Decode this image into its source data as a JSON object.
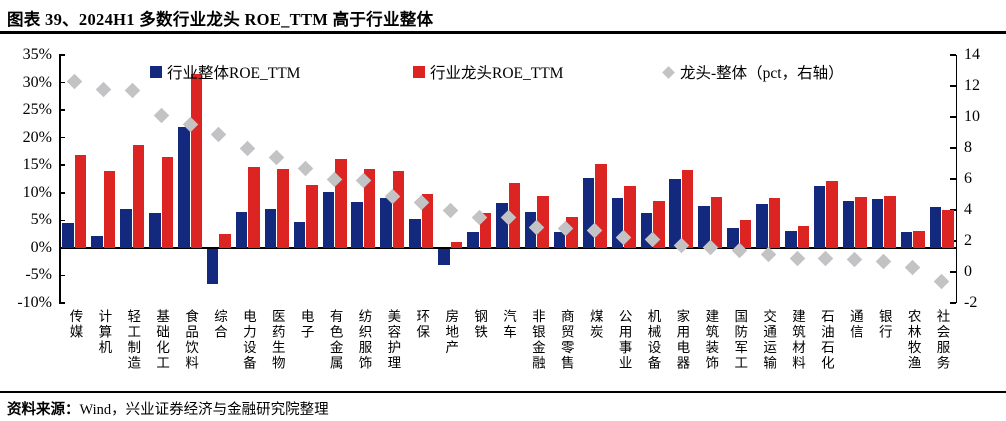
{
  "title": "图表 39、2024H1 多数行业龙头 ROE_TTM 高于行业整体",
  "source_note": {
    "label": "资料来源：",
    "text": "Wind，兴业证券经济与金融研究院整理"
  },
  "colors": {
    "overall_bar": "#12297e",
    "leader_bar": "#dc2423",
    "diff_marker": "#c3c3c6",
    "axis": "#000000"
  },
  "legend": [
    {
      "label": "行业整体ROE_TTM",
      "marker": "square",
      "color": "#12297e"
    },
    {
      "label": "行业龙头ROE_TTM",
      "marker": "square",
      "color": "#dc2423"
    },
    {
      "label": "龙头-整体（pct，右轴）",
      "marker": "diamond",
      "color": "#c3c3c6"
    }
  ],
  "chart_data": {
    "type": "bar",
    "subtype": "grouped bars with diamond scatter on secondary axis",
    "categories": [
      "传媒",
      "计算机",
      "轻工制造",
      "基础化工",
      "食品饮料",
      "综合",
      "电力设备",
      "医药生物",
      "电子",
      "有色金属",
      "纺织服饰",
      "美容护理",
      "环保",
      "房地产",
      "钢铁",
      "汽车",
      "非银金融",
      "商贸零售",
      "煤炭",
      "公用事业",
      "机械设备",
      "家用电器",
      "建筑装饰",
      "国防军工",
      "交通运输",
      "建筑材料",
      "石油石化",
      "通信",
      "银行",
      "农林牧渔",
      "社会服务"
    ],
    "series": [
      {
        "name": "行业整体ROE_TTM",
        "type": "bar",
        "axis": "left",
        "unit": "%",
        "values": [
          4.5,
          2.2,
          7.0,
          6.4,
          22.0,
          -6.3,
          6.6,
          7.0,
          4.7,
          10.1,
          8.4,
          9.0,
          5.3,
          -3.0,
          2.8,
          8.2,
          6.5,
          2.8,
          12.6,
          9.0,
          6.4,
          12.5,
          7.6,
          3.6,
          7.9,
          3.1,
          11.2,
          8.5,
          8.8,
          2.8,
          7.5
        ]
      },
      {
        "name": "行业龙头ROE_TTM",
        "type": "bar",
        "axis": "left",
        "unit": "%",
        "values": [
          16.8,
          14.0,
          18.7,
          16.5,
          31.5,
          2.6,
          14.6,
          14.4,
          11.4,
          16.1,
          14.3,
          13.9,
          9.8,
          1.0,
          6.3,
          11.7,
          9.4,
          5.6,
          15.3,
          11.2,
          8.5,
          14.2,
          9.2,
          5.0,
          9.0,
          4.0,
          12.1,
          9.3,
          9.5,
          3.1,
          6.9
        ]
      },
      {
        "name": "龙头-整体（pct，右轴）",
        "type": "scatter",
        "marker": "diamond",
        "axis": "right",
        "unit": "pct",
        "values": [
          12.3,
          11.8,
          11.7,
          10.1,
          9.5,
          8.9,
          8.0,
          7.4,
          6.7,
          6.0,
          5.9,
          4.9,
          4.5,
          4.0,
          3.5,
          3.5,
          2.9,
          2.8,
          2.7,
          2.2,
          2.1,
          1.7,
          1.6,
          1.4,
          1.1,
          0.9,
          0.9,
          0.8,
          0.7,
          0.3,
          -0.6
        ]
      }
    ],
    "left_axis": {
      "min": -10,
      "max": 35,
      "step": 5,
      "tick_labels": [
        "35%",
        "30%",
        "25%",
        "20%",
        "15%",
        "10%",
        "5%",
        "0%",
        "-5%",
        "-10%"
      ]
    },
    "right_axis": {
      "min": -2,
      "max": 14,
      "step": 2,
      "tick_labels": [
        "14",
        "12",
        "10",
        "8",
        "6",
        "4",
        "2",
        "0",
        "-2"
      ]
    },
    "grid": false,
    "legend_position": "top-inside"
  }
}
